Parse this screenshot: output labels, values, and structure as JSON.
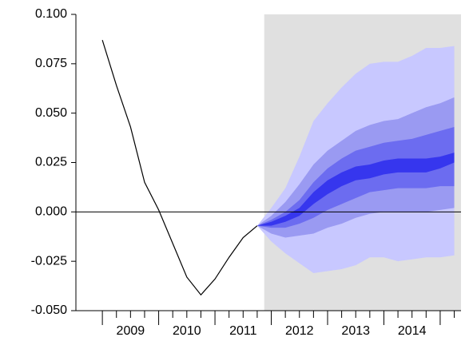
{
  "chart_data": {
    "type": "fan",
    "x": [
      2009.0,
      2009.25,
      2009.5,
      2009.75,
      2010.0,
      2010.25,
      2010.5,
      2010.75,
      2011.0,
      2011.25,
      2011.5,
      2011.75
    ],
    "values": [
      0.087,
      0.064,
      0.043,
      0.015,
      0.001,
      -0.016,
      -0.033,
      -0.042,
      -0.034,
      -0.023,
      -0.013,
      -0.007
    ],
    "line_color": "#000000",
    "fan": {
      "x": [
        2011.75,
        2012.0,
        2012.25,
        2012.5,
        2012.75,
        2013.0,
        2013.25,
        2013.5,
        2013.75,
        2014.0,
        2014.25,
        2014.5,
        2014.75,
        2015.0,
        2015.25
      ],
      "bands": [
        {
          "color": "#c8c8ff",
          "upper": [
            -0.007,
            0.002,
            0.012,
            0.028,
            0.046,
            0.055,
            0.063,
            0.07,
            0.075,
            0.076,
            0.076,
            0.079,
            0.083,
            0.083,
            0.084
          ],
          "lower": [
            -0.007,
            -0.015,
            -0.021,
            -0.026,
            -0.031,
            -0.03,
            -0.029,
            -0.027,
            -0.023,
            -0.023,
            -0.025,
            -0.024,
            -0.023,
            -0.023,
            -0.022
          ]
        },
        {
          "color": "#9a9af2",
          "upper": [
            -0.007,
            -0.002,
            0.005,
            0.014,
            0.024,
            0.031,
            0.036,
            0.041,
            0.044,
            0.046,
            0.047,
            0.05,
            0.053,
            0.055,
            0.058
          ],
          "lower": [
            -0.007,
            -0.011,
            -0.013,
            -0.012,
            -0.011,
            -0.008,
            -0.006,
            -0.003,
            -0.001,
            0.0,
            0.0,
            0.0,
            0.0,
            0.001,
            0.002
          ]
        },
        {
          "color": "#6c6cf0",
          "upper": [
            -0.007,
            -0.004,
            0.0,
            0.006,
            0.015,
            0.022,
            0.027,
            0.031,
            0.033,
            0.035,
            0.036,
            0.037,
            0.039,
            0.041,
            0.043
          ],
          "lower": [
            -0.007,
            -0.008,
            -0.008,
            -0.006,
            -0.003,
            0.001,
            0.004,
            0.007,
            0.01,
            0.011,
            0.012,
            0.012,
            0.012,
            0.013,
            0.013
          ]
        },
        {
          "color": "#3636ee",
          "upper": [
            -0.007,
            -0.005,
            -0.002,
            0.002,
            0.01,
            0.016,
            0.02,
            0.023,
            0.024,
            0.026,
            0.027,
            0.027,
            0.027,
            0.028,
            0.03
          ],
          "lower": [
            -0.007,
            -0.007,
            -0.005,
            -0.002,
            0.004,
            0.009,
            0.013,
            0.016,
            0.017,
            0.019,
            0.02,
            0.02,
            0.02,
            0.022,
            0.025
          ]
        }
      ]
    },
    "shade": {
      "from": 2011.875,
      "color": "#e0e0e0"
    },
    "zero_line": true,
    "xlim": [
      2008.53,
      2015.37
    ],
    "ylim": [
      -0.05,
      0.1
    ],
    "yticks": [
      {
        "value": 0.1,
        "label": "0.100"
      },
      {
        "value": 0.075,
        "label": "0.075"
      },
      {
        "value": 0.05,
        "label": "0.050"
      },
      {
        "value": 0.025,
        "label": "0.025"
      },
      {
        "value": 0,
        "label": "0.000"
      },
      {
        "value": -0.025,
        "label": "-0.025"
      },
      {
        "value": -0.05,
        "label": "-0.050"
      }
    ],
    "xticks": [
      {
        "value": 2009.5,
        "label": "2009"
      },
      {
        "value": 2010.5,
        "label": "2010"
      },
      {
        "value": 2011.5,
        "label": "2011"
      },
      {
        "value": 2012.5,
        "label": "2012"
      },
      {
        "value": 2013.5,
        "label": "2013"
      },
      {
        "value": 2014.5,
        "label": "2014"
      }
    ],
    "x_minor_ticks": [
      2009.0,
      2009.25,
      2009.5,
      2009.75,
      2010.0,
      2010.25,
      2010.5,
      2010.75,
      2011.0,
      2011.25,
      2011.5,
      2011.75,
      2012.0,
      2012.25,
      2012.5,
      2012.75,
      2013.0,
      2013.25,
      2013.5,
      2013.75,
      2014.0,
      2014.25,
      2014.5,
      2014.75,
      2015.0,
      2015.25
    ]
  }
}
